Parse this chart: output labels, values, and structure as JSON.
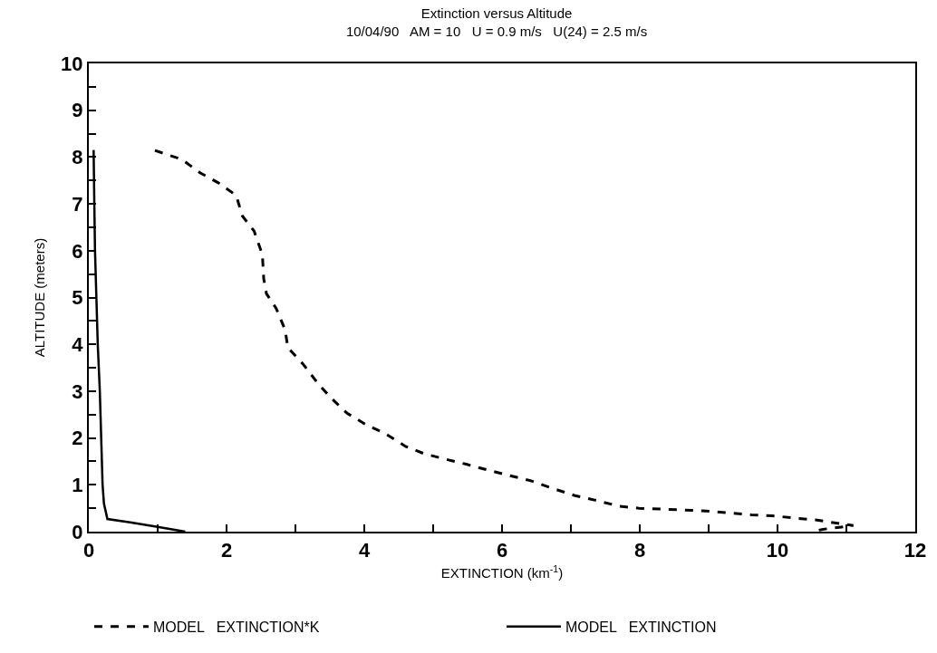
{
  "chart_data": {
    "type": "line",
    "title": "Extinction versus Altitude",
    "subtitle": "10/04/90   AM = 10   U = 0.9 m/s   U(24) = 2.5 m/s",
    "xlabel": "EXTINCTION (km$^{-1}$)",
    "ylabel": "ALTITUDE (meters)",
    "xlim": [
      0,
      12
    ],
    "xticks": [
      0,
      {
        "value": 1,
        "label": null
      },
      2,
      {
        "value": 3,
        "label": null
      },
      4,
      {
        "value": 5,
        "label": null
      },
      6,
      {
        "value": 7,
        "label": null
      },
      8,
      {
        "value": 9,
        "label": null
      },
      10,
      {
        "value": 11,
        "label": null
      },
      12
    ],
    "ylim": [
      0,
      10
    ],
    "yticks": [
      0,
      {
        "value": 0.5,
        "label": null
      },
      1,
      {
        "value": 1.5,
        "label": null
      },
      2,
      {
        "value": 2.5,
        "label": null
      },
      3,
      {
        "value": 3.5,
        "label": null
      },
      4,
      {
        "value": 4.5,
        "label": null
      },
      5,
      {
        "value": 5.5,
        "label": null
      },
      6,
      {
        "value": 6.5,
        "label": null
      },
      7,
      {
        "value": 7.5,
        "label": null
      },
      8,
      {
        "value": 8.5,
        "label": null
      },
      9,
      {
        "value": 9.5,
        "label": null
      },
      10
    ],
    "legend": "bottom",
    "series": [
      {
        "name": "MODEL   EXTINCTION*K",
        "color": "#000000",
        "line_style": "dashed",
        "x": [
          0.96,
          1.35,
          1.62,
          1.88,
          2.14,
          2.23,
          2.4,
          2.52,
          2.54,
          2.58,
          2.72,
          2.85,
          2.89,
          3.11,
          3.33,
          3.52,
          3.75,
          4.03,
          4.31,
          4.6,
          4.86,
          5.17,
          5.48,
          5.78,
          6.13,
          6.41,
          6.7,
          7.06,
          7.36,
          7.71,
          7.99,
          8.32,
          8.65,
          8.97,
          9.29,
          9.62,
          9.92,
          10.25,
          10.55,
          11.1,
          10.66,
          10.5
        ],
        "values": [
          8.14,
          7.95,
          7.66,
          7.45,
          7.18,
          6.74,
          6.42,
          5.92,
          5.4,
          5.08,
          4.77,
          4.31,
          3.93,
          3.58,
          3.16,
          2.85,
          2.53,
          2.28,
          2.09,
          1.82,
          1.67,
          1.55,
          1.44,
          1.32,
          1.19,
          1.09,
          0.94,
          0.77,
          0.67,
          0.54,
          0.5,
          0.48,
          0.46,
          0.44,
          0.4,
          0.36,
          0.34,
          0.29,
          0.25,
          0.13,
          0.05,
          0
        ]
      },
      {
        "name": "MODEL   EXTINCTION",
        "color": "#000000",
        "line_style": "solid",
        "x": [
          0.07,
          0.08,
          0.09,
          0.11,
          0.13,
          0.16,
          0.18,
          0.2,
          0.22,
          0.27,
          0.6,
          1.0,
          1.4
        ],
        "values": [
          8.15,
          7,
          6,
          5,
          4,
          3,
          2,
          1,
          0.6,
          0.27,
          0.2,
          0.1,
          0
        ]
      }
    ]
  }
}
